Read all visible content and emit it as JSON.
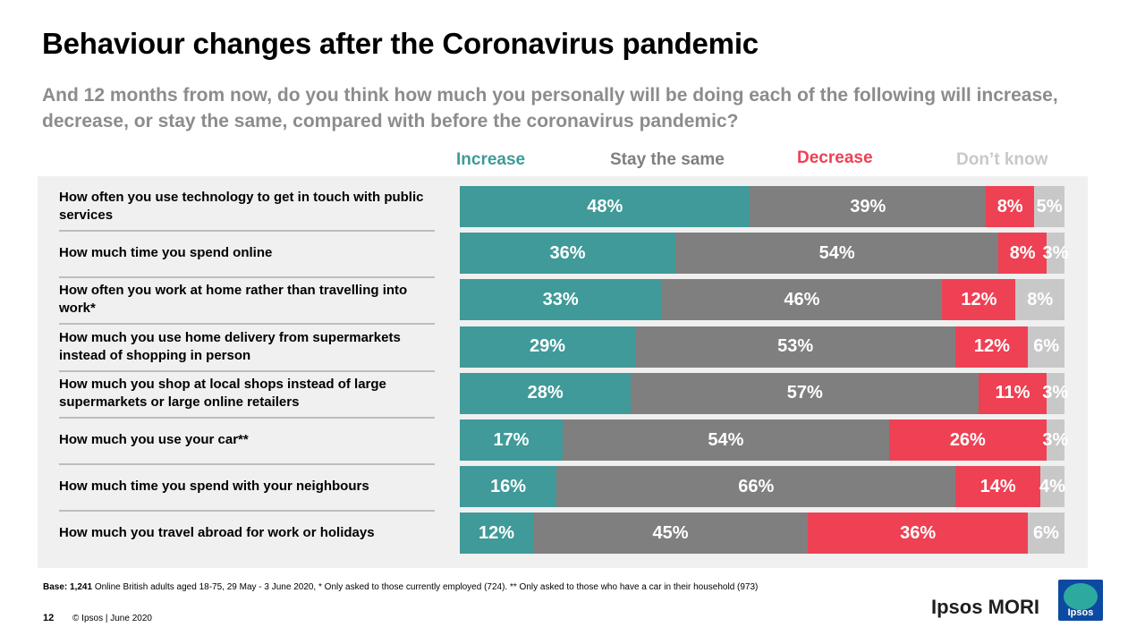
{
  "title": "Behaviour changes after the Coronavirus pandemic",
  "subtitle": "And 12 months from now, do you think how much you personally will be doing each of the following will increase, decrease, or stay the same, compared with before the coronavirus pandemic?",
  "colors": {
    "increase": "#3f9a99",
    "stay": "#7f7f7f",
    "decrease": "#ee4154",
    "dont_know": "#c8c8c8"
  },
  "chart_data": {
    "type": "bar",
    "orientation": "horizontal",
    "stacked": true,
    "xlim": [
      0,
      100
    ],
    "categories": [
      "How often you use technology  to get in touch with public  services",
      "How much  time you spend  online",
      "How often  you work at home  rather than travelling  into work*",
      "How much  you use home delivery  from supermarkets  instead of shopping  in person",
      "How much  you shop at local  shops  instead  of large supermarkets  or large online  retailers",
      "How much  you use your car**",
      "How much  time you spend  with your neighbours",
      "How much  you travel abroad for work or holidays"
    ],
    "series": [
      {
        "name": "Increase",
        "values": [
          48,
          36,
          33,
          29,
          28,
          17,
          16,
          12
        ]
      },
      {
        "name": "Stay the same",
        "values": [
          39,
          54,
          46,
          53,
          57,
          54,
          66,
          45
        ]
      },
      {
        "name": "Decrease",
        "values": [
          8,
          8,
          12,
          12,
          11,
          26,
          14,
          36
        ]
      },
      {
        "name": "Don’t know",
        "values": [
          5,
          3,
          8,
          6,
          3,
          3,
          4,
          6
        ]
      }
    ],
    "value_suffix": "%"
  },
  "base_note": {
    "lead": "Base:",
    "count": "1,241",
    "text": " Online British adults aged 18-75, 29 May - 3 June 2020, * Only asked to those currently employed (724). ** Only asked to those who have a car in their household (973)"
  },
  "footer": {
    "page": "12",
    "copyright": "© Ipsos |  June 2020"
  },
  "brand": {
    "name": "Ipsos MORI",
    "logo_text": "Ipsos"
  }
}
